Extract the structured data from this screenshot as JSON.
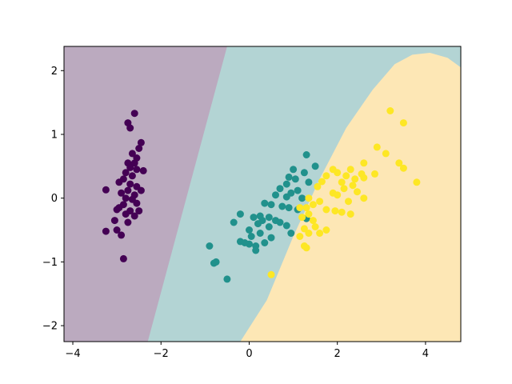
{
  "chart_data": {
    "type": "scatter",
    "title": "",
    "xlabel": "",
    "ylabel": "",
    "xlim": [
      -4.2,
      4.8
    ],
    "ylim": [
      -2.25,
      2.38
    ],
    "grid": false,
    "legend": "none",
    "x_ticks": [
      -4,
      -2,
      0,
      2,
      4
    ],
    "y_ticks": [
      -2,
      -1,
      0,
      1,
      2
    ],
    "x_tick_labels": [
      "−4",
      "−2",
      "0",
      "2",
      "4"
    ],
    "y_tick_labels": [
      "−2",
      "−1",
      "0",
      "1",
      "2"
    ],
    "decision_regions": [
      {
        "class": 0,
        "color": "#bbaabf"
      },
      {
        "class": 1,
        "color": "#b3d4d4"
      },
      {
        "class": 2,
        "color": "#fde7b5"
      }
    ],
    "boundaries": {
      "class0_class1_line": [
        [
          -2.3,
          -2.25
        ],
        [
          -0.5,
          2.38
        ]
      ],
      "class1_class2_curve": [
        [
          -0.2,
          -2.25
        ],
        [
          0.4,
          -1.6
        ],
        [
          1.0,
          -0.6
        ],
        [
          1.6,
          0.3
        ],
        [
          2.2,
          1.1
        ],
        [
          2.8,
          1.7
        ],
        [
          3.3,
          2.1
        ],
        [
          3.7,
          2.25
        ],
        [
          4.1,
          2.28
        ],
        [
          4.5,
          2.2
        ],
        [
          4.8,
          2.05
        ]
      ]
    },
    "series": [
      {
        "color": "#440154",
        "points": [
          [
            -2.6,
            1.33
          ],
          [
            -2.75,
            1.18
          ],
          [
            -2.7,
            1.1
          ],
          [
            -2.45,
            0.87
          ],
          [
            -2.5,
            0.78
          ],
          [
            -2.65,
            0.7
          ],
          [
            -2.55,
            0.63
          ],
          [
            -2.75,
            0.55
          ],
          [
            -2.6,
            0.55
          ],
          [
            -2.7,
            0.48
          ],
          [
            -2.55,
            0.45
          ],
          [
            -2.4,
            0.43
          ],
          [
            -2.8,
            0.4
          ],
          [
            -2.65,
            0.35
          ],
          [
            -2.85,
            0.3
          ],
          [
            -2.95,
            0.25
          ],
          [
            -2.7,
            0.22
          ],
          [
            -2.55,
            0.18
          ],
          [
            -2.45,
            0.12
          ],
          [
            -2.75,
            0.12
          ],
          [
            -2.9,
            0.08
          ],
          [
            -3.25,
            0.13
          ],
          [
            -2.6,
            0.05
          ],
          [
            -2.8,
            0.0
          ],
          [
            -2.65,
            -0.02
          ],
          [
            -2.55,
            -0.08
          ],
          [
            -2.85,
            -0.1
          ],
          [
            -2.95,
            -0.15
          ],
          [
            -3.0,
            -0.18
          ],
          [
            -2.7,
            -0.2
          ],
          [
            -2.5,
            -0.2
          ],
          [
            -2.8,
            -0.25
          ],
          [
            -2.6,
            -0.28
          ],
          [
            -3.05,
            -0.35
          ],
          [
            -2.75,
            -0.38
          ],
          [
            -3.25,
            -0.52
          ],
          [
            -3.0,
            -0.5
          ],
          [
            -2.9,
            -0.58
          ],
          [
            -2.85,
            -0.95
          ]
        ]
      },
      {
        "color": "#21918c",
        "points": [
          [
            1.3,
            0.68
          ],
          [
            1.0,
            0.45
          ],
          [
            1.5,
            0.5
          ],
          [
            1.25,
            0.4
          ],
          [
            0.9,
            0.33
          ],
          [
            1.05,
            0.3
          ],
          [
            1.35,
            0.25
          ],
          [
            0.85,
            0.22
          ],
          [
            0.7,
            0.15
          ],
          [
            1.1,
            0.12
          ],
          [
            0.95,
            0.08
          ],
          [
            0.6,
            0.05
          ],
          [
            0.85,
            0.02
          ],
          [
            1.2,
            0.0
          ],
          [
            0.35,
            -0.08
          ],
          [
            0.5,
            -0.1
          ],
          [
            0.75,
            -0.13
          ],
          [
            0.9,
            -0.15
          ],
          [
            1.1,
            -0.18
          ],
          [
            -0.2,
            -0.25
          ],
          [
            0.25,
            -0.28
          ],
          [
            0.45,
            -0.3
          ],
          [
            0.1,
            -0.3
          ],
          [
            0.6,
            -0.35
          ],
          [
            0.3,
            -0.35
          ],
          [
            1.3,
            -0.32
          ],
          [
            -0.35,
            -0.38
          ],
          [
            0.2,
            -0.4
          ],
          [
            0.7,
            -0.38
          ],
          [
            0.85,
            -0.43
          ],
          [
            0.45,
            -0.45
          ],
          [
            0.0,
            -0.5
          ],
          [
            0.25,
            -0.55
          ],
          [
            0.95,
            -0.55
          ],
          [
            0.05,
            -0.6
          ],
          [
            0.5,
            -0.62
          ],
          [
            -0.2,
            -0.68
          ],
          [
            0.35,
            -0.7
          ],
          [
            0.0,
            -0.72
          ],
          [
            -0.1,
            -0.7
          ],
          [
            0.15,
            -0.75
          ],
          [
            -0.9,
            -0.75
          ],
          [
            0.15,
            -0.82
          ],
          [
            -0.75,
            -1.0
          ],
          [
            -0.8,
            -1.02
          ],
          [
            -0.5,
            -1.27
          ]
        ]
      },
      {
        "color": "#fde725",
        "points": [
          [
            3.2,
            1.37
          ],
          [
            3.5,
            1.18
          ],
          [
            2.9,
            0.8
          ],
          [
            3.1,
            0.7
          ],
          [
            3.4,
            0.55
          ],
          [
            3.5,
            0.47
          ],
          [
            2.6,
            0.55
          ],
          [
            1.9,
            0.45
          ],
          [
            2.3,
            0.45
          ],
          [
            2.0,
            0.4
          ],
          [
            2.2,
            0.35
          ],
          [
            2.55,
            0.38
          ],
          [
            2.85,
            0.38
          ],
          [
            1.75,
            0.35
          ],
          [
            2.4,
            0.3
          ],
          [
            2.6,
            0.32
          ],
          [
            1.65,
            0.26
          ],
          [
            2.1,
            0.25
          ],
          [
            2.35,
            0.2
          ],
          [
            3.8,
            0.25
          ],
          [
            1.55,
            0.18
          ],
          [
            2.15,
            0.15
          ],
          [
            2.45,
            0.1
          ],
          [
            1.9,
            0.08
          ],
          [
            2.0,
            0.05
          ],
          [
            2.6,
            0.0
          ],
          [
            1.35,
            0.0
          ],
          [
            1.6,
            -0.05
          ],
          [
            1.45,
            -0.1
          ],
          [
            2.25,
            -0.05
          ],
          [
            1.3,
            -0.15
          ],
          [
            1.15,
            -0.15
          ],
          [
            1.75,
            -0.18
          ],
          [
            1.95,
            -0.2
          ],
          [
            2.1,
            -0.22
          ],
          [
            1.35,
            -0.25
          ],
          [
            2.3,
            -0.25
          ],
          [
            1.2,
            -0.3
          ],
          [
            1.45,
            -0.35
          ],
          [
            1.5,
            -0.45
          ],
          [
            1.25,
            -0.48
          ],
          [
            1.6,
            -0.55
          ],
          [
            1.75,
            -0.5
          ],
          [
            1.15,
            -0.6
          ],
          [
            1.35,
            -0.55
          ],
          [
            1.25,
            -0.75
          ],
          [
            1.3,
            -0.78
          ],
          [
            0.5,
            -1.2
          ]
        ]
      }
    ]
  }
}
